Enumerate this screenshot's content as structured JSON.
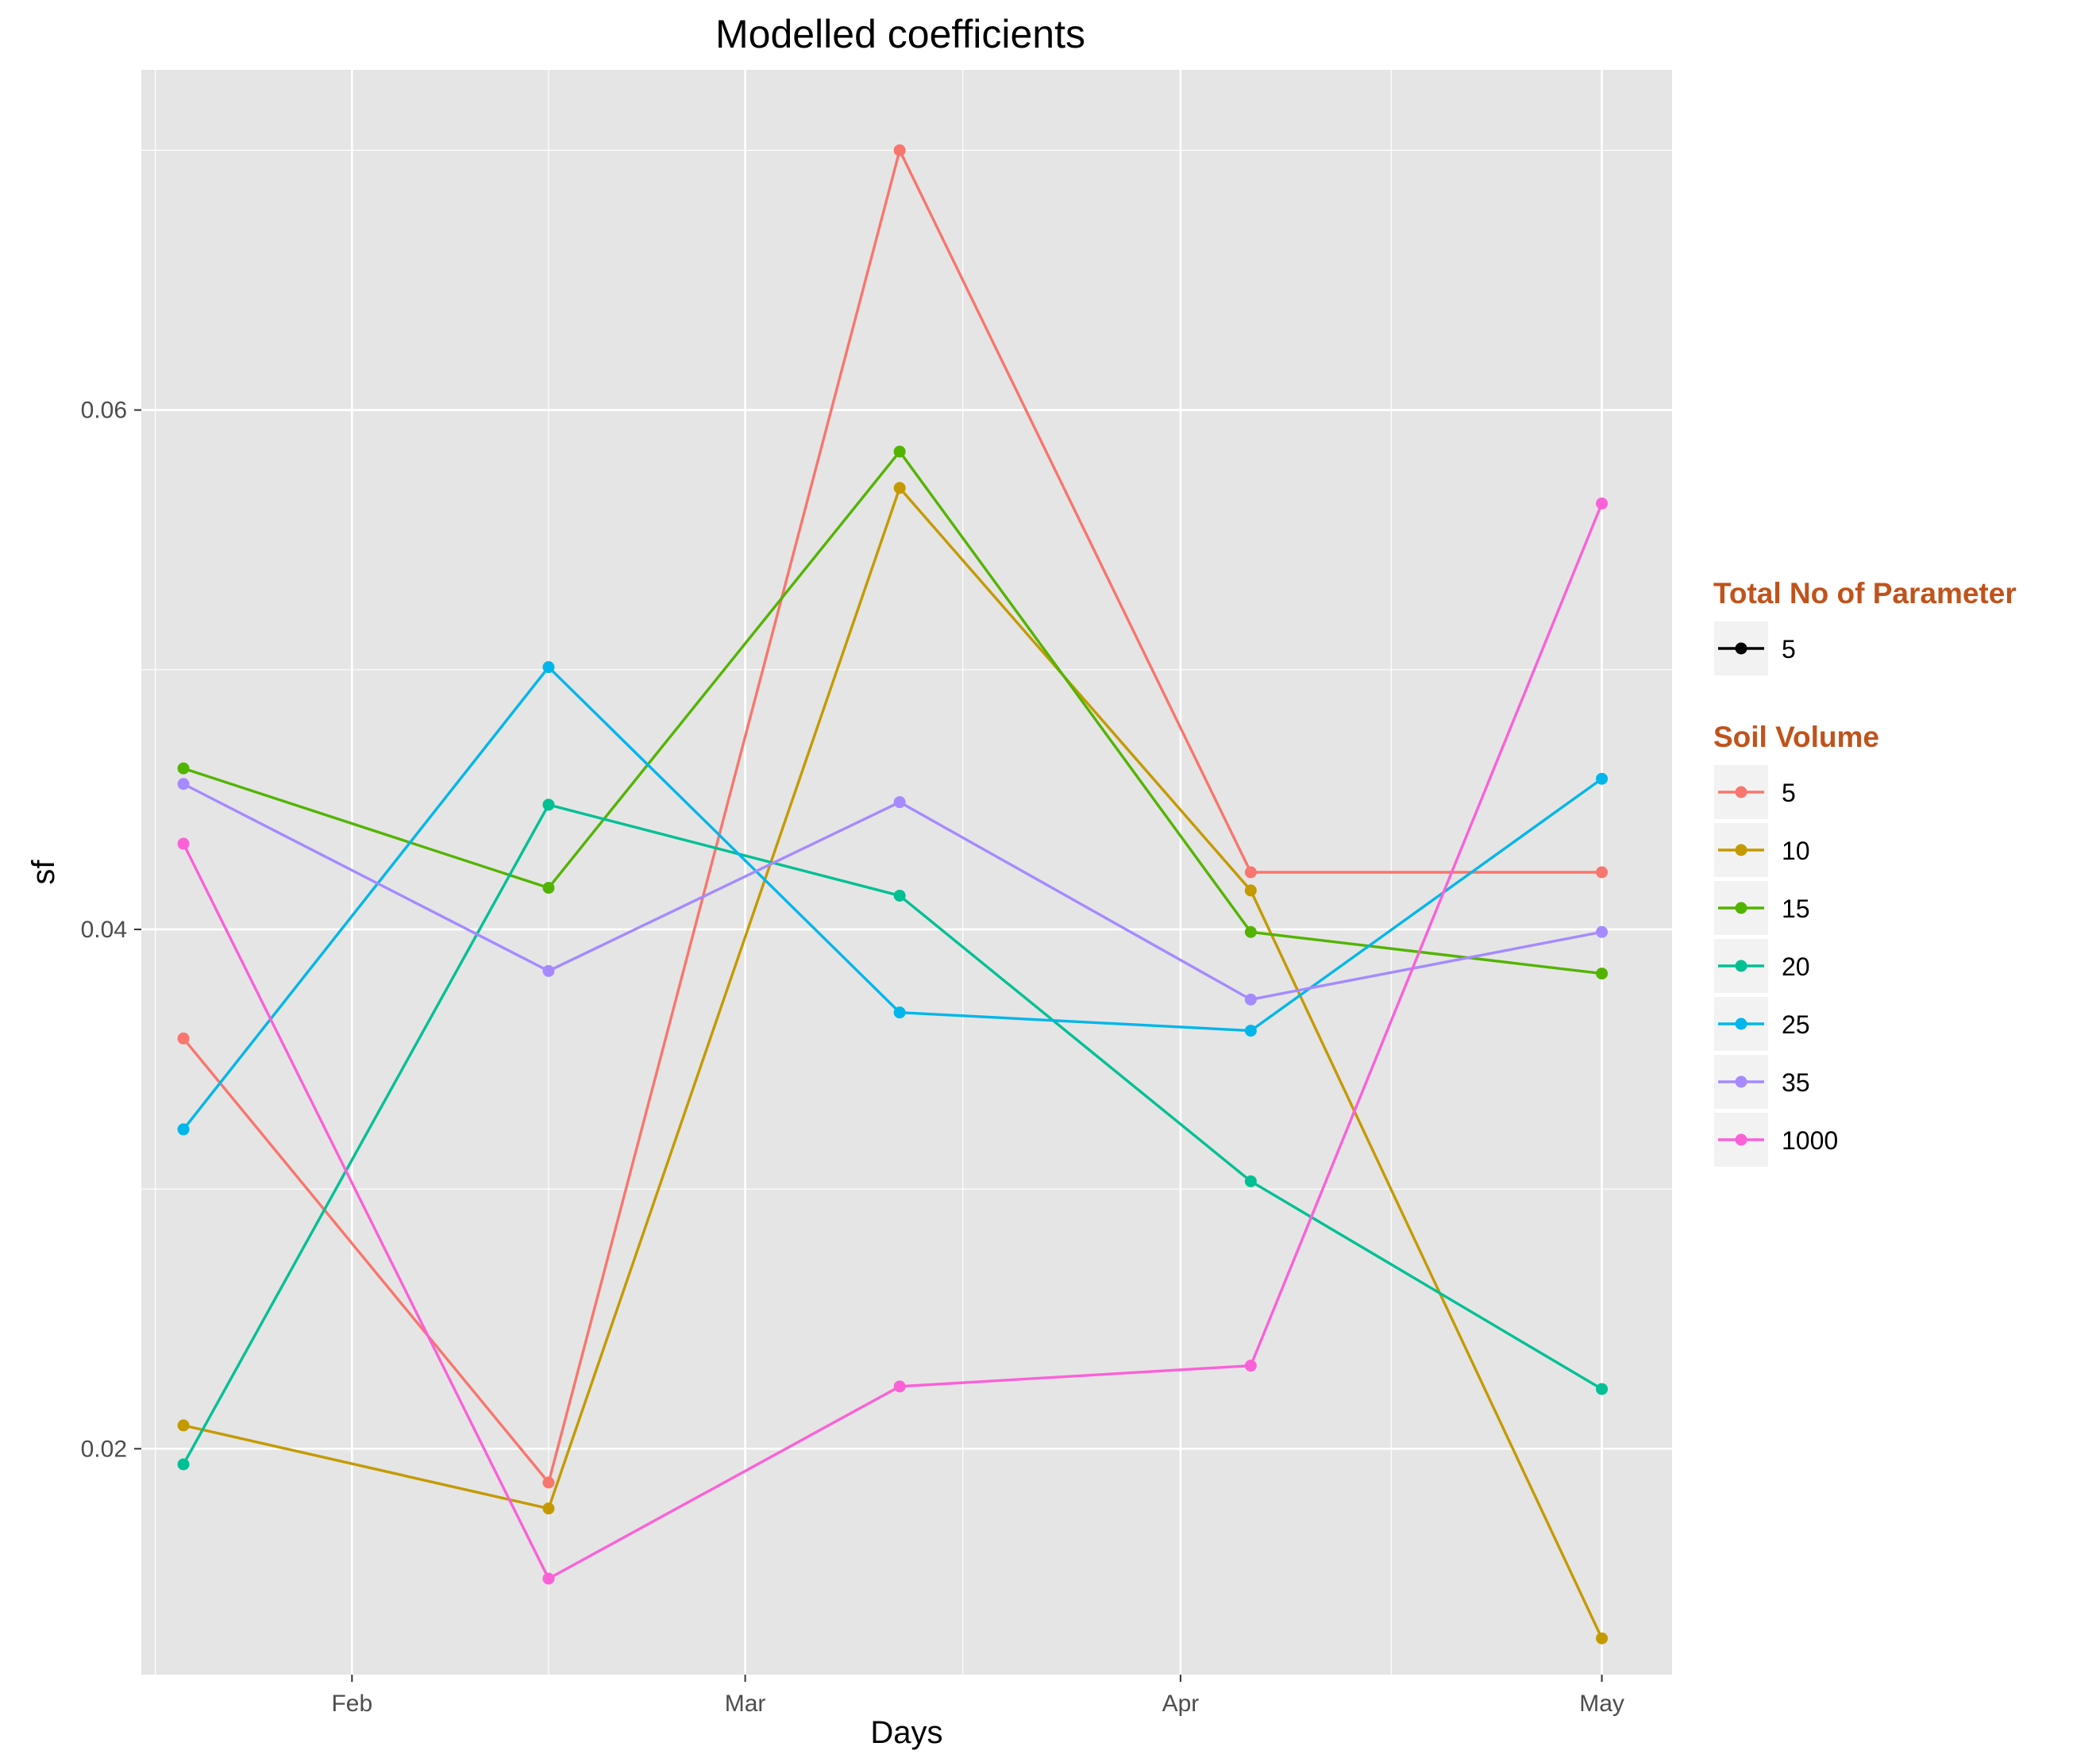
{
  "chart_data": {
    "type": "line",
    "title": "Modelled coefficients",
    "xlabel": "Days",
    "ylabel": "sf",
    "x_ticks": [
      {
        "date": "2013-02-01",
        "label": "Feb"
      },
      {
        "date": "2013-03-01",
        "label": "Mar"
      },
      {
        "date": "2013-04-01",
        "label": "Apr"
      },
      {
        "date": "2013-05-01",
        "label": "May"
      }
    ],
    "xlim": [
      "2013-01-17",
      "2013-05-06"
    ],
    "y_ticks": [
      0.02,
      0.04,
      0.06
    ],
    "y_tick_labels": [
      "0.02",
      "0.04",
      "0.06"
    ],
    "ylim": [
      0.0113,
      0.0731
    ],
    "grid": true,
    "x": [
      "2013-01-20",
      "2013-02-15",
      "2013-03-12",
      "2013-04-06",
      "2013-05-01"
    ],
    "series": [
      {
        "name": "5",
        "color": "#F8766D",
        "values": [
          0.0358,
          0.0187,
          0.07,
          0.0422,
          0.0422
        ]
      },
      {
        "name": "10",
        "color": "#C49A00",
        "values": [
          0.0209,
          0.0177,
          0.057,
          0.0415,
          0.0127
        ]
      },
      {
        "name": "15",
        "color": "#53B400",
        "values": [
          0.0462,
          0.0416,
          0.0584,
          0.0399,
          0.0383
        ]
      },
      {
        "name": "20",
        "color": "#00C094",
        "values": [
          0.0194,
          0.0448,
          0.0413,
          0.0303,
          0.0223
        ]
      },
      {
        "name": "25",
        "color": "#00B6EB",
        "values": [
          0.0323,
          0.0501,
          0.0368,
          0.0361,
          0.0458
        ]
      },
      {
        "name": "35",
        "color": "#A58AFF",
        "values": [
          0.0456,
          0.0384,
          0.0449,
          0.0373,
          0.0399
        ]
      },
      {
        "name": "1000",
        "color": "#FB61D7",
        "values": [
          0.0433,
          0.015,
          0.0224,
          0.0232,
          0.0564
        ]
      }
    ],
    "legend": {
      "placement": "right",
      "parameter_title": "Total No of Parameter",
      "parameter_entries": [
        "5"
      ],
      "volume_title": "Soil Volume",
      "title_color": "#C0531C"
    },
    "colors": {
      "panel_background": "#E5E5E5",
      "grid_line": "#FFFFFF",
      "legend_key_background": "#F2F2F2",
      "parameter_key_color": "#000000"
    }
  }
}
